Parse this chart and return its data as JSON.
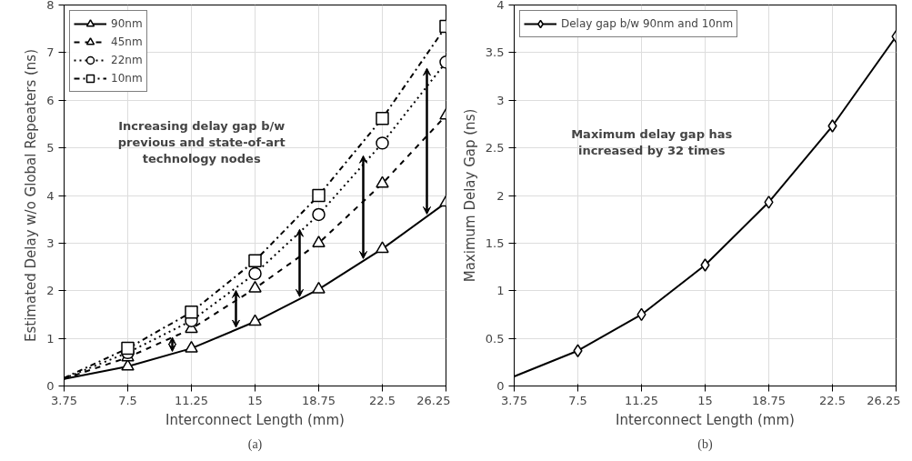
{
  "chart_data": [
    {
      "type": "line",
      "xlabel": "Interconnect Length (mm)",
      "ylabel": "Estimated Delay w/o Global Repeaters (ns)",
      "x": [
        3.75,
        7.5,
        11.25,
        15,
        18.75,
        22.5,
        26.25
      ],
      "series": [
        {
          "name": "90nm",
          "color": "#000000",
          "marker": "triangle",
          "line_style": "solid",
          "values": [
            0.15,
            0.41,
            0.79,
            1.35,
            2.03,
            2.88,
            3.85
          ]
        },
        {
          "name": "45nm",
          "color": "#000000",
          "marker": "triangle",
          "line_style": "dashed",
          "values": [
            0.15,
            0.6,
            1.2,
            2.05,
            3.0,
            4.25,
            5.68
          ]
        },
        {
          "name": "22nm",
          "color": "#000000",
          "marker": "circle",
          "line_style": "dotted",
          "values": [
            0.16,
            0.7,
            1.37,
            2.36,
            3.6,
            5.1,
            6.8
          ]
        },
        {
          "name": "10nm",
          "color": "#000000",
          "marker": "square",
          "line_style": "dashdot",
          "values": [
            0.17,
            0.79,
            1.55,
            2.63,
            4.0,
            5.62,
            7.55
          ]
        }
      ],
      "xlim": [
        3.75,
        26.25
      ],
      "xticks": [
        3.75,
        7.5,
        11.25,
        15,
        18.75,
        22.5,
        26.25
      ],
      "ylim": [
        0,
        8
      ],
      "yticks": [
        0,
        1,
        2,
        3,
        4,
        5,
        6,
        7,
        8
      ],
      "grid": true,
      "legend": "top left",
      "annotations": [
        "Increasing delay gap b/w\nprevious and state-of-art\ntechnology nodes",
        "(a)"
      ]
    },
    {
      "type": "line",
      "xlabel": "Interconnect Length (mm)",
      "ylabel": "Maximum Delay Gap (ns)",
      "x": [
        3.75,
        7.5,
        11.25,
        15,
        18.75,
        22.5,
        26.25
      ],
      "series": [
        {
          "name": "Delay gap b/w 90nm and 10nm",
          "color": "#000000",
          "marker": "diamond",
          "line_style": "solid",
          "values": [
            0.1,
            0.37,
            0.75,
            1.27,
            1.93,
            2.73,
            3.67
          ]
        }
      ],
      "xlim": [
        3.75,
        26.25
      ],
      "xticks": [
        3.75,
        7.5,
        11.25,
        15,
        18.75,
        22.5,
        26.25
      ],
      "ylim": [
        0,
        4
      ],
      "yticks": [
        0,
        0.5,
        1,
        1.5,
        2,
        2.5,
        3,
        3.5,
        4
      ],
      "grid": true,
      "legend": "top left",
      "annotations": [
        "Maximum delay gap has\nincreased by 32 times",
        "(b)"
      ]
    }
  ]
}
